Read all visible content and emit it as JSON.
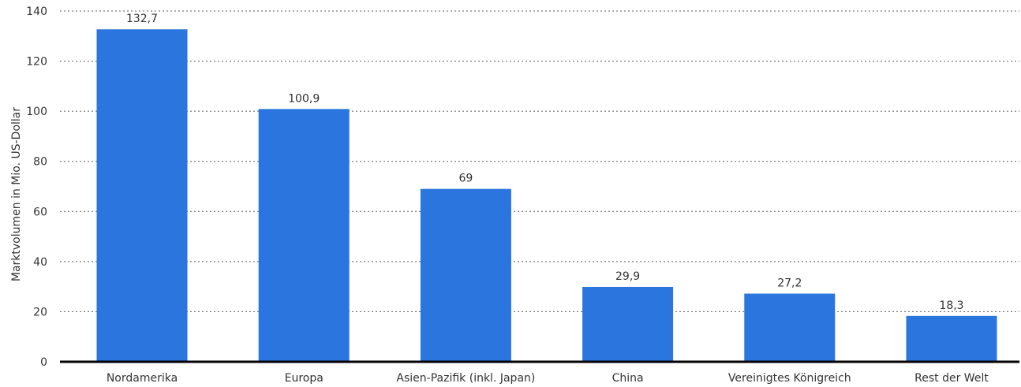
{
  "chart_data": {
    "type": "bar",
    "categories": [
      "Nordamerika",
      "Europa",
      "Asien-Pazifik (inkl. Japan)",
      "China",
      "Vereinigtes Königreich",
      "Rest der Welt"
    ],
    "values": [
      132.7,
      100.9,
      69,
      29.9,
      27.2,
      18.3
    ],
    "value_labels": [
      "132,7",
      "100,9",
      "69",
      "29,9",
      "27,2",
      "18,3"
    ],
    "ylabel": "Marktvolumen in Mio. US-Dollar",
    "ylim": [
      0,
      140
    ],
    "yticks": [
      0,
      20,
      40,
      60,
      80,
      100,
      120,
      140
    ],
    "grid": true,
    "bar_color": "#2a76de"
  }
}
